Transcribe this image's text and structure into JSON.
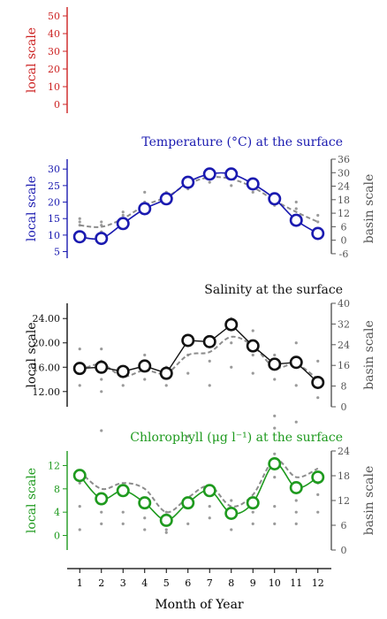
{
  "chart_data": [
    {
      "type": "line",
      "panel": "empty",
      "title": "",
      "ylabel": "local scale",
      "ylim": [
        -5,
        55
      ],
      "yticks": [
        0,
        10,
        20,
        30,
        40,
        50
      ],
      "yticks_label": [
        "0",
        "10",
        "20",
        "30",
        "40",
        "50"
      ],
      "color": "#cc2222",
      "series": []
    },
    {
      "type": "line",
      "panel": "temperature",
      "title": "Temperature (°C) at the surface",
      "ylabel": "local scale",
      "ylabel_right": "basin scale",
      "ylim": [
        3,
        33
      ],
      "yticks": [
        5,
        10,
        15,
        20,
        25,
        30
      ],
      "yticks_label": [
        "5",
        "10",
        "15",
        "20",
        "25",
        "30"
      ],
      "right_ylim": [
        -8,
        36
      ],
      "right_yticks": [
        -6,
        0,
        6,
        12,
        18,
        24,
        30,
        36
      ],
      "right_yticks_label": [
        "-6",
        "0",
        "6",
        "12",
        "18",
        "24",
        "30",
        "36"
      ],
      "color": "#1a1ab0",
      "x": [
        1,
        2,
        3,
        4,
        5,
        6,
        7,
        8,
        9,
        10,
        11,
        12
      ],
      "local": [
        9.5,
        9.0,
        13.5,
        18.0,
        21.0,
        26.0,
        28.5,
        28.5,
        25.5,
        21.0,
        14.5,
        10.5
      ],
      "basin": [
        13.0,
        12.5,
        15.0,
        19.0,
        21.5,
        25.5,
        27.5,
        27.0,
        24.5,
        20.5,
        17.0,
        14.0
      ],
      "basin_scatter": [
        [
          1,
          13
        ],
        [
          1,
          14
        ],
        [
          1,
          15
        ],
        [
          2,
          11
        ],
        [
          2,
          13
        ],
        [
          2,
          14
        ],
        [
          3,
          14
        ],
        [
          3,
          16
        ],
        [
          3,
          17
        ],
        [
          4,
          17
        ],
        [
          4,
          20
        ],
        [
          4,
          23
        ],
        [
          5,
          20
        ],
        [
          5,
          22
        ],
        [
          5,
          23
        ],
        [
          6,
          24
        ],
        [
          6,
          26
        ],
        [
          6,
          27
        ],
        [
          7,
          26
        ],
        [
          7,
          28
        ],
        [
          7,
          29
        ],
        [
          8,
          25
        ],
        [
          8,
          27
        ],
        [
          8,
          28
        ],
        [
          9,
          23
        ],
        [
          9,
          25
        ],
        [
          9,
          26
        ],
        [
          10,
          19
        ],
        [
          10,
          21
        ],
        [
          10,
          22
        ],
        [
          11,
          15
        ],
        [
          11,
          18
        ],
        [
          11,
          20
        ],
        [
          12,
          12
        ],
        [
          12,
          14
        ],
        [
          12,
          16
        ]
      ]
    },
    {
      "type": "line",
      "panel": "salinity",
      "title": "Salinity at the surface",
      "ylabel": "local scale",
      "ylabel_right": "basin scale",
      "ylim": [
        9.5,
        26.5
      ],
      "yticks": [
        12,
        16,
        20,
        24
      ],
      "yticks_label": [
        "12.00",
        "16.00",
        "20.00",
        "24.00"
      ],
      "right_ylim": [
        0,
        40
      ],
      "right_yticks": [
        0,
        8,
        16,
        24,
        32,
        40
      ],
      "right_yticks_label": [
        "0",
        "8",
        "16",
        "24",
        "32",
        "40"
      ],
      "color": "#111111",
      "x": [
        1,
        2,
        3,
        4,
        5,
        6,
        7,
        8,
        9,
        10,
        11,
        12
      ],
      "local": [
        15.8,
        16.0,
        15.3,
        16.2,
        15.0,
        20.4,
        20.2,
        23.0,
        19.5,
        16.5,
        16.8,
        13.5
      ],
      "basin": [
        15.5,
        16.5,
        14.5,
        15.5,
        15.0,
        18.0,
        18.5,
        21.0,
        19.5,
        16.0,
        16.5,
        14.0
      ],
      "basin_scatter": [
        [
          1,
          13
        ],
        [
          1,
          15
        ],
        [
          1,
          19
        ],
        [
          2,
          12
        ],
        [
          2,
          14
        ],
        [
          2,
          17
        ],
        [
          2,
          19
        ],
        [
          3,
          13
        ],
        [
          3,
          15
        ],
        [
          3,
          16
        ],
        [
          4,
          14
        ],
        [
          4,
          16
        ],
        [
          4,
          18
        ],
        [
          5,
          13
        ],
        [
          5,
          15
        ],
        [
          5,
          16
        ],
        [
          6,
          15
        ],
        [
          6,
          18
        ],
        [
          6,
          21
        ],
        [
          7,
          13
        ],
        [
          7,
          17
        ],
        [
          7,
          21
        ],
        [
          8,
          16
        ],
        [
          8,
          20
        ],
        [
          8,
          24
        ],
        [
          9,
          15
        ],
        [
          9,
          18
        ],
        [
          9,
          22
        ],
        [
          10,
          6
        ],
        [
          10,
          8
        ],
        [
          10,
          14
        ],
        [
          10,
          18
        ],
        [
          11,
          7
        ],
        [
          11,
          13
        ],
        [
          11,
          16
        ],
        [
          11,
          20
        ],
        [
          12,
          11
        ],
        [
          12,
          14
        ],
        [
          12,
          17
        ]
      ]
    },
    {
      "type": "line",
      "panel": "chlorophyll",
      "title": "Chlorophyll (μg l⁻¹) at the surface",
      "ylabel": "local scale",
      "ylabel_right": "basin scale",
      "ylim": [
        -2.5,
        14.5
      ],
      "yticks": [
        0,
        4,
        8,
        12
      ],
      "yticks_label": [
        "0",
        "4",
        "8",
        "12"
      ],
      "right_ylim": [
        0,
        24
      ],
      "right_yticks": [
        0,
        6,
        12,
        18,
        24
      ],
      "right_yticks_label": [
        "0",
        "6",
        "12",
        "18",
        "24"
      ],
      "color": "#1e9a1e",
      "x": [
        1,
        2,
        3,
        4,
        5,
        6,
        7,
        8,
        9,
        10,
        11,
        12
      ],
      "local": [
        10.3,
        6.3,
        7.7,
        5.6,
        2.6,
        5.6,
        7.7,
        3.8,
        5.6,
        12.3,
        8.2,
        10.0
      ],
      "basin": [
        11.0,
        8.0,
        9.0,
        8.0,
        4.0,
        6.5,
        8.5,
        5.0,
        7.0,
        13.0,
        10.0,
        11.5
      ],
      "basin_scatter": [
        [
          1,
          1
        ],
        [
          1,
          5
        ],
        [
          1,
          9
        ],
        [
          2,
          2
        ],
        [
          2,
          4
        ],
        [
          2,
          6
        ],
        [
          2,
          18
        ],
        [
          3,
          2
        ],
        [
          3,
          4
        ],
        [
          3,
          7
        ],
        [
          4,
          1
        ],
        [
          4,
          3
        ],
        [
          4,
          5
        ],
        [
          5,
          0.5
        ],
        [
          5,
          1
        ],
        [
          5,
          2
        ],
        [
          5,
          4
        ],
        [
          6,
          2
        ],
        [
          6,
          5
        ],
        [
          6,
          17
        ],
        [
          7,
          3
        ],
        [
          7,
          5
        ],
        [
          7,
          7
        ],
        [
          8,
          1
        ],
        [
          8,
          3
        ],
        [
          8,
          6
        ],
        [
          9,
          2
        ],
        [
          9,
          4
        ],
        [
          9,
          6
        ],
        [
          10,
          2
        ],
        [
          10,
          5
        ],
        [
          10,
          10
        ],
        [
          10,
          14
        ],
        [
          11,
          2
        ],
        [
          11,
          4
        ],
        [
          11,
          6
        ],
        [
          11,
          8
        ],
        [
          12,
          4
        ],
        [
          12,
          7
        ],
        [
          12,
          9
        ]
      ]
    }
  ],
  "xaxis": {
    "xlabel": "Month of Year",
    "ticks": [
      1,
      2,
      3,
      4,
      5,
      6,
      7,
      8,
      9,
      10,
      11,
      12
    ],
    "tick_labels": [
      "1",
      "2",
      "3",
      "4",
      "5",
      "6",
      "7",
      "8",
      "9",
      "10",
      "11",
      "12"
    ],
    "xlim": [
      0.5,
      12.5
    ]
  }
}
